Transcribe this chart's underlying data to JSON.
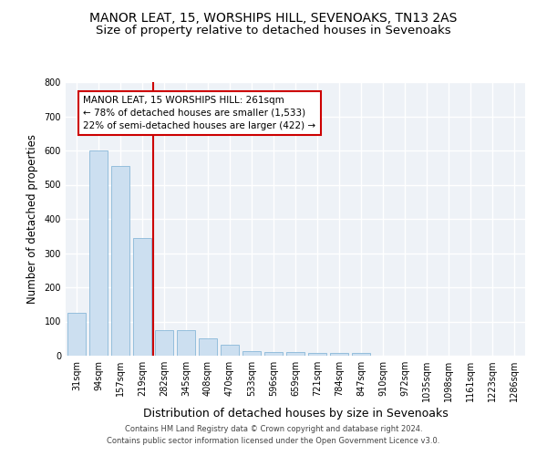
{
  "title1": "MANOR LEAT, 15, WORSHIPS HILL, SEVENOAKS, TN13 2AS",
  "title2": "Size of property relative to detached houses in Sevenoaks",
  "xlabel": "Distribution of detached houses by size in Sevenoaks",
  "ylabel": "Number of detached properties",
  "categories": [
    "31sqm",
    "94sqm",
    "157sqm",
    "219sqm",
    "282sqm",
    "345sqm",
    "408sqm",
    "470sqm",
    "533sqm",
    "596sqm",
    "659sqm",
    "721sqm",
    "784sqm",
    "847sqm",
    "910sqm",
    "972sqm",
    "1035sqm",
    "1098sqm",
    "1161sqm",
    "1223sqm",
    "1286sqm"
  ],
  "values": [
    125,
    600,
    555,
    345,
    75,
    75,
    50,
    32,
    13,
    12,
    10,
    8,
    8,
    8,
    0,
    0,
    0,
    0,
    0,
    0,
    0
  ],
  "bar_color": "#ccdff0",
  "bar_edge_color": "#89b8d8",
  "vline_x_index": 4,
  "vline_color": "#cc0000",
  "annotation_text": "MANOR LEAT, 15 WORSHIPS HILL: 261sqm\n← 78% of detached houses are smaller (1,533)\n22% of semi-detached houses are larger (422) →",
  "annotation_box_color": "white",
  "annotation_box_edge": "#cc0000",
  "ylim": [
    0,
    800
  ],
  "yticks": [
    0,
    100,
    200,
    300,
    400,
    500,
    600,
    700,
    800
  ],
  "footer": "Contains HM Land Registry data © Crown copyright and database right 2024.\nContains public sector information licensed under the Open Government Licence v3.0.",
  "bg_color": "#eef2f7",
  "grid_color": "white",
  "title1_fontsize": 10,
  "title2_fontsize": 9.5,
  "xlabel_fontsize": 9,
  "ylabel_fontsize": 8.5,
  "tick_fontsize": 7,
  "annotation_fontsize": 7.5,
  "footer_fontsize": 6
}
